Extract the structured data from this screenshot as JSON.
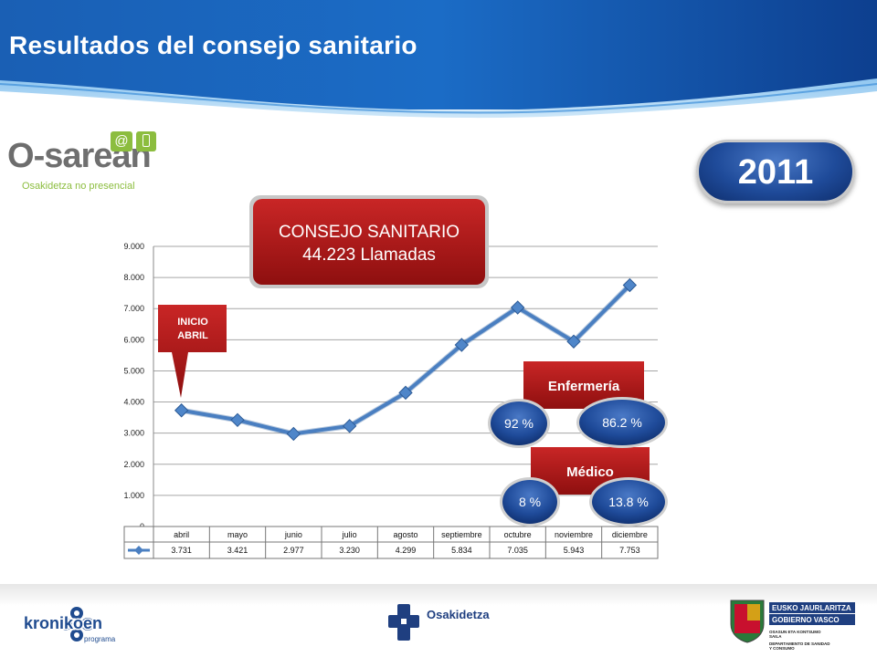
{
  "page": {
    "title": "Resultados del consejo sanitario",
    "year": "2011"
  },
  "logos": {
    "osarean_o": "O",
    "osarean_rest": "-sarean",
    "osarean_sub": "Osakidetza no presencial",
    "osarean_at": "@",
    "kronikoen_name": "kronikoen",
    "kronikoen_sub": "programa",
    "osakidetza": "Osakidetza",
    "eusko_line1": "EUSKO JAURLARITZA",
    "eusko_line2": "GOBIERNO VASCO",
    "eusko_small1": "OSASUN ETA KONTSUMO",
    "eusko_small2": "SAILA",
    "eusko_small3": "DEPARTAMENTO DE SANIDAD",
    "eusko_small4": "Y CONSUMO"
  },
  "callouts": {
    "consejo_line1": "CONSEJO SANITARIO",
    "consejo_line2": "44.223 Llamadas",
    "inicio_line1": "INICIO",
    "inicio_line2": "ABRIL",
    "enfermeria": "Enfermería",
    "medico": "Médico",
    "enf_left": "92 %",
    "enf_right": "86.2 %",
    "med_left": "8 %",
    "med_right": "13.8 %"
  },
  "colors": {
    "line": "#4a7fc1",
    "callout_red": "#b21818",
    "pill_blue": "#1f4b9a"
  },
  "chart_data": {
    "type": "line",
    "categories": [
      "abril",
      "mayo",
      "junio",
      "julio",
      "agosto",
      "septiembre",
      "octubre",
      "noviembre",
      "diciembre"
    ],
    "values": [
      3731,
      3421,
      2977,
      3230,
      4299,
      5834,
      7035,
      5943,
      7753
    ],
    "value_labels": [
      "3.731",
      "3.421",
      "2.977",
      "3.230",
      "4.299",
      "5.834",
      "7.035",
      "5.943",
      "7.753"
    ],
    "yticks": [
      "0",
      "1.000",
      "2.000",
      "3.000",
      "4.000",
      "5.000",
      "6.000",
      "7.000",
      "8.000",
      "9.000"
    ],
    "ylim": [
      0,
      9000
    ],
    "grid": true
  }
}
